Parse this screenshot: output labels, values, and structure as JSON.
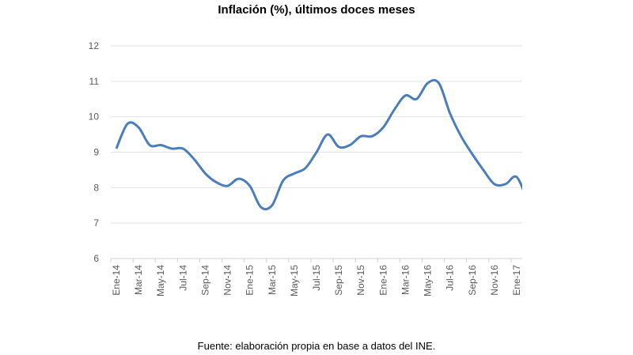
{
  "chart_data": {
    "type": "line",
    "title": "Inflación (%), últimos doces meses",
    "xlabel": "",
    "ylabel": "",
    "ylim": [
      6,
      12
    ],
    "yticks": [
      "6",
      "7",
      "8",
      "9",
      "10",
      "11",
      "12"
    ],
    "grid": true,
    "legend": "none",
    "x": [
      "Ene-14",
      "Feb-14",
      "Mar-14",
      "Abr-14",
      "May-14",
      "Jun-14",
      "Jul-14",
      "Ago-14",
      "Sep-14",
      "Oct-14",
      "Nov-14",
      "Dic-14",
      "Ene-15",
      "Feb-15",
      "Mar-15",
      "Abr-15",
      "May-15",
      "Jun-15",
      "Jul-15",
      "Ago-15",
      "Sep-15",
      "Oct-15",
      "Nov-15",
      "Dic-15",
      "Ene-16",
      "Feb-16",
      "Mar-16",
      "Abr-16",
      "May-16",
      "Jun-16",
      "Jul-16",
      "Ago-16",
      "Sep-16",
      "Oct-16",
      "Nov-16",
      "Dic-16",
      "Ene-17",
      "Feb-17"
    ],
    "xtick_labels": [
      "Ene-14",
      "Mar-14",
      "May-14",
      "Jul-14",
      "Sep-14",
      "Nov-14",
      "Ene-15",
      "Mar-15",
      "May-15",
      "Jul-15",
      "Sep-15",
      "Nov-15",
      "Ene-16",
      "Mar-16",
      "May-16",
      "Jul-16",
      "Sep-16",
      "Nov-16",
      "Ene-17"
    ],
    "series": [
      {
        "name": "Inflación",
        "color": "#4a7ebb",
        "values": [
          9.1,
          9.8,
          9.7,
          9.2,
          9.2,
          9.1,
          9.1,
          8.8,
          8.4,
          8.15,
          8.05,
          8.25,
          8.05,
          7.45,
          7.5,
          8.2,
          8.4,
          8.55,
          9.0,
          9.5,
          9.15,
          9.2,
          9.45,
          9.45,
          9.7,
          10.2,
          10.6,
          10.5,
          10.95,
          10.95,
          10.1,
          9.45,
          8.95,
          8.5,
          8.1,
          8.1,
          8.3,
          7.6
        ]
      }
    ]
  },
  "source": "Fuente: elaboración propia en base a datos del INE."
}
